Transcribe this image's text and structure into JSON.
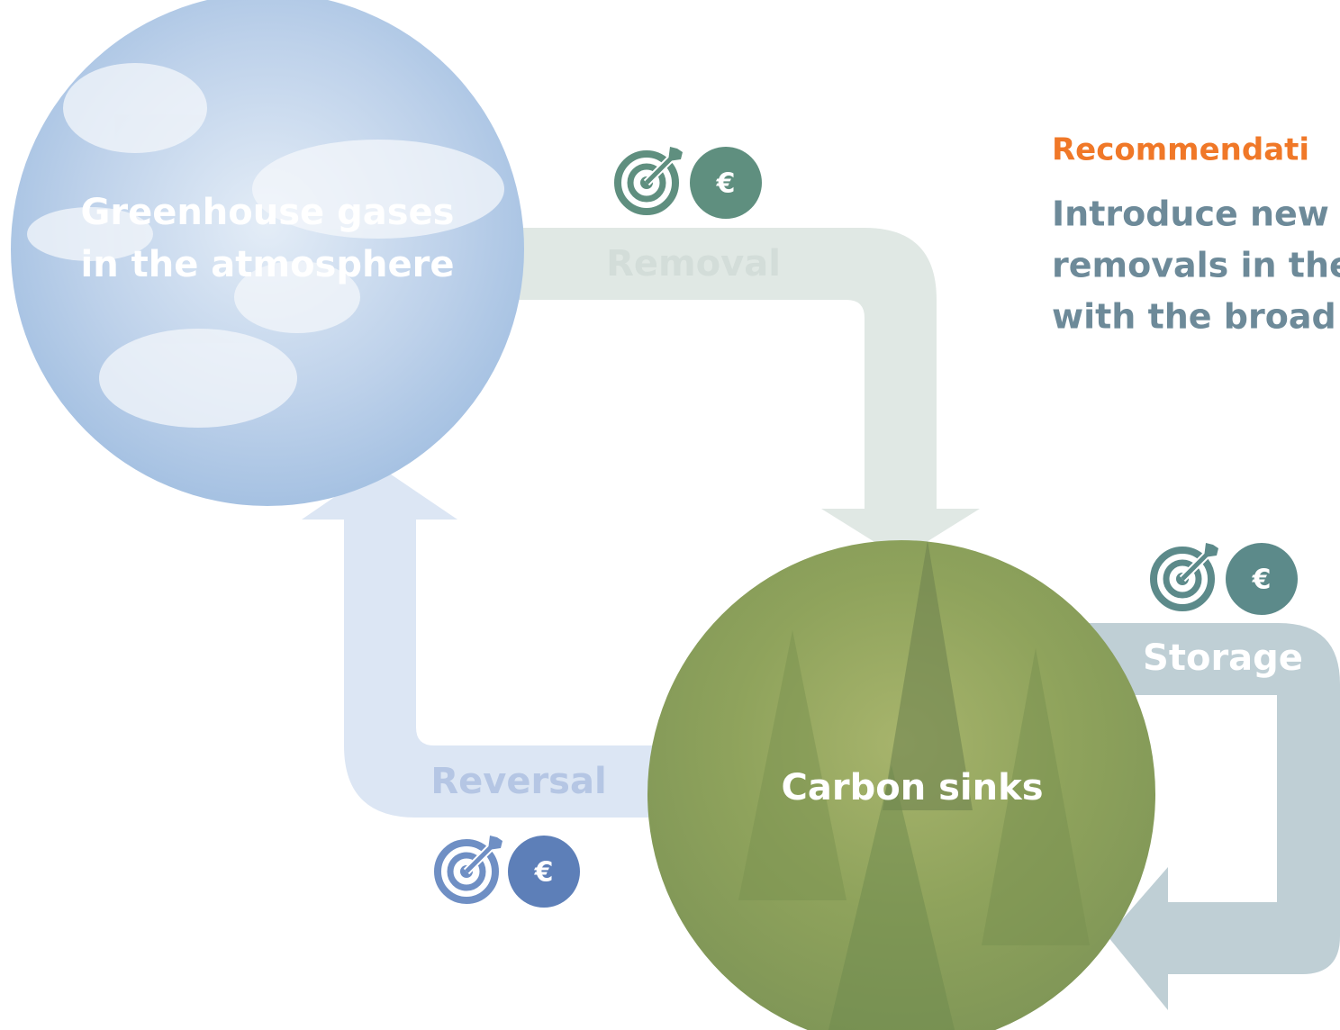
{
  "nodes": [
    {
      "label": [
        "Greenhouse gases",
        "in the atmosphere"
      ]
    },
    {
      "label": "Carbon sinks"
    }
  ],
  "flows": [
    {
      "label": "Removal",
      "icon_text": "€"
    },
    {
      "label": "Storage",
      "icon_text": "€"
    },
    {
      "label": "Reversal",
      "icon_text": "€"
    }
  ],
  "recommendation": {
    "heading": "Recommendati",
    "lines": [
      "Introduce new",
      "removals in the",
      "with the broad"
    ]
  }
}
